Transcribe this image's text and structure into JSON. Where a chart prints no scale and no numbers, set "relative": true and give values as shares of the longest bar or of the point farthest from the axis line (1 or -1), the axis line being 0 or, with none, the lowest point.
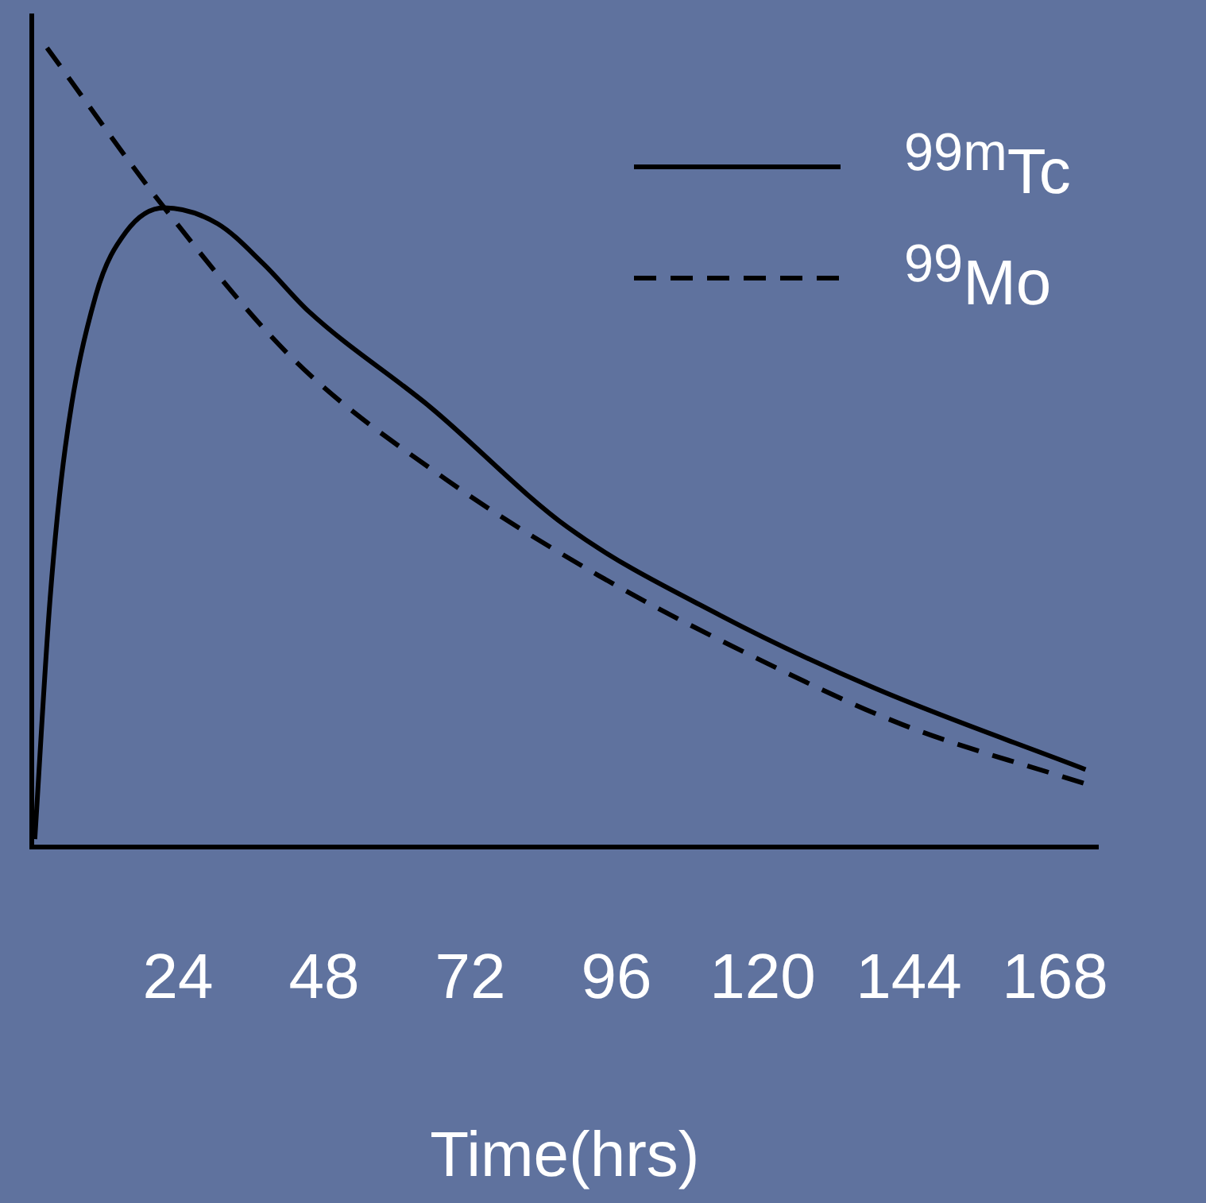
{
  "chart_data": {
    "type": "line",
    "relative": true,
    "xlabel": "Time(hrs)",
    "xlim": [
      0,
      175
    ],
    "xticks": [
      24,
      48,
      72,
      96,
      120,
      144,
      168
    ],
    "grid": false,
    "legend": "top right",
    "marker": "none",
    "series": [
      {
        "name": "$^{99m}$Tc",
        "color": "#000000",
        "line_style": "solid",
        "x": [
          0.5,
          3,
          5.5,
          10.5,
          15.5,
          21.75,
          30.5,
          38,
          45.5,
          65.5,
          88,
          113,
          138,
          173
        ],
        "values": [
          0.01,
          0.31,
          0.5,
          0.69,
          0.77,
          0.8,
          0.78,
          0.73,
          0.67,
          0.55,
          0.4,
          0.29,
          0.2,
          0.097
        ]
      },
      {
        "name": "$^{99}$Mo",
        "color": "#000000",
        "line_style": "dashed",
        "x": [
          2.5,
          21.75,
          43,
          68,
          93,
          118,
          143,
          173
        ],
        "values": [
          1,
          0.8,
          0.61,
          0.46,
          0.34,
          0.24,
          0.153,
          0.079
        ]
      }
    ]
  }
}
